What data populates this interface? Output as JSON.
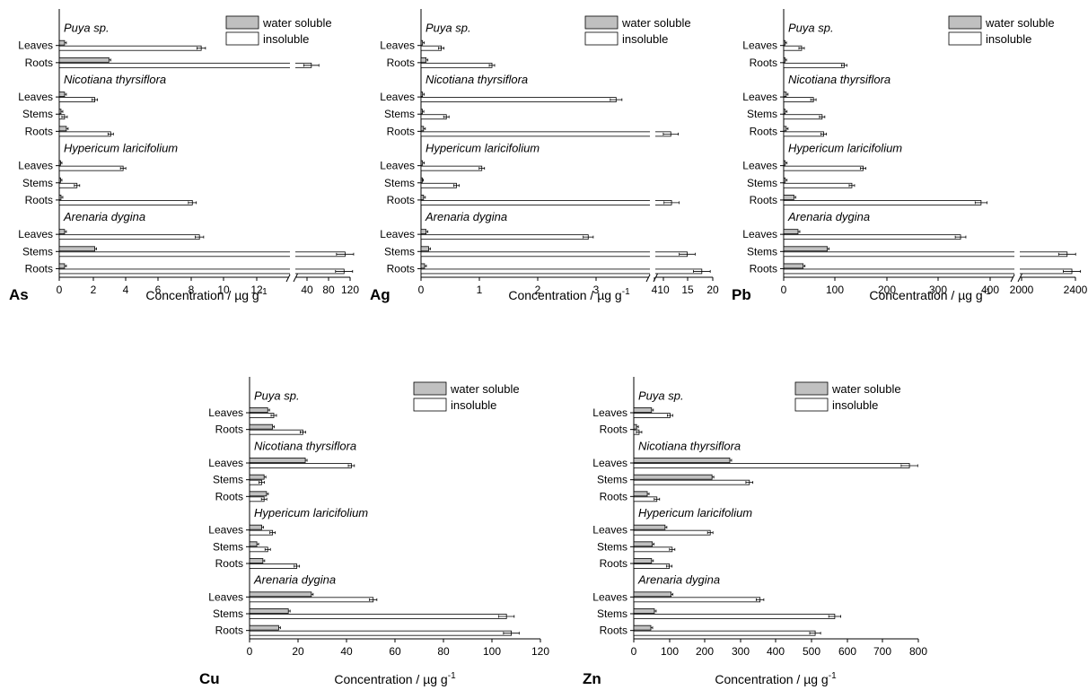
{
  "figure": {
    "legend_soluble": "water soluble",
    "legend_insoluble": "insoluble",
    "xlabel": "Concentration / µg g",
    "xlabel_sup": "-1"
  },
  "colors": {
    "soluble_fill": "#c0c0c0",
    "insoluble_fill": "#ffffff",
    "stroke": "#000000"
  },
  "chart_data": [
    {
      "type": "bar",
      "element": "As",
      "legend": [
        "water soluble",
        "insoluble"
      ],
      "legend_position": "top-right",
      "x_ticks": [
        "0",
        "2",
        "4",
        "6",
        "8",
        "10",
        "12",
        "40",
        "80",
        "120"
      ],
      "x_break": "between 12 and 40",
      "groups": [
        {
          "species": "Puya sp.",
          "organs": [
            {
              "organ": "Leaves",
              "water_soluble": 0.3,
              "insoluble": 8.0
            },
            {
              "organ": "Roots",
              "water_soluble": 2.8,
              "insoluble": 43
            }
          ]
        },
        {
          "species": "Nicotiana thyrsiflora",
          "organs": [
            {
              "organ": "Leaves",
              "water_soluble": 0.3,
              "insoluble": 2.0
            },
            {
              "organ": "Stems",
              "water_soluble": 0.1,
              "insoluble": 0.3
            },
            {
              "organ": "Roots",
              "water_soluble": 0.4,
              "insoluble": 2.9
            }
          ]
        },
        {
          "species": "Hypericum laricifolium",
          "organs": [
            {
              "organ": "Leaves",
              "water_soluble": 0.05,
              "insoluble": 3.6
            },
            {
              "organ": "Stems",
              "water_soluble": 0.05,
              "insoluble": 1.0
            },
            {
              "organ": "Roots",
              "water_soluble": 0.1,
              "insoluble": 7.5
            }
          ]
        },
        {
          "species": "Arenaria dygina",
          "organs": [
            {
              "organ": "Leaves",
              "water_soluble": 0.3,
              "insoluble": 7.9
            },
            {
              "organ": "Stems",
              "water_soluble": 2.0,
              "insoluble": 110
            },
            {
              "organ": "Roots",
              "water_soluble": 0.3,
              "insoluble": 108
            }
          ]
        }
      ]
    },
    {
      "type": "bar",
      "element": "Ag",
      "legend": [
        "water soluble",
        "insoluble"
      ],
      "legend_position": "top-right",
      "x_ticks": [
        "0",
        "1",
        "2",
        "3",
        "4",
        "10",
        "15",
        "20"
      ],
      "x_break": "between 4 and 10",
      "groups": [
        {
          "species": "Puya sp.",
          "organs": [
            {
              "organ": "Leaves",
              "water_soluble": 0.03,
              "insoluble": 0.4
            },
            {
              "organ": "Roots",
              "water_soluble": 0.1,
              "insoluble": 1.4
            }
          ]
        },
        {
          "species": "Nicotiana thyrsiflora",
          "organs": [
            {
              "organ": "Leaves",
              "water_soluble": 0.03,
              "insoluble": 3.85
            },
            {
              "organ": "Stems",
              "water_soluble": 0.02,
              "insoluble": 0.5
            },
            {
              "organ": "Roots",
              "water_soluble": 0.05,
              "insoluble": 8.5
            }
          ]
        },
        {
          "species": "Hypericum laricifolium",
          "organs": [
            {
              "organ": "Leaves",
              "water_soluble": 0.03,
              "insoluble": 1.2
            },
            {
              "organ": "Stems",
              "water_soluble": 0.01,
              "insoluble": 0.7
            },
            {
              "organ": "Roots",
              "water_soluble": 0.05,
              "insoluble": 8.7
            }
          ]
        },
        {
          "species": "Arenaria dygina",
          "organs": [
            {
              "organ": "Leaves",
              "water_soluble": 0.1,
              "insoluble": 3.3
            },
            {
              "organ": "Stems",
              "water_soluble": 0.15,
              "insoluble": 13
            },
            {
              "organ": "Roots",
              "water_soluble": 0.07,
              "insoluble": 17
            }
          ]
        }
      ]
    },
    {
      "type": "bar",
      "element": "Pb",
      "legend": [
        "water soluble",
        "insoluble"
      ],
      "legend_position": "top-right",
      "x_ticks": [
        "0",
        "100",
        "200",
        "300",
        "400",
        "2000",
        "2400"
      ],
      "x_break": "between 400 and 2000",
      "groups": [
        {
          "species": "Puya sp.",
          "organs": [
            {
              "organ": "Leaves",
              "water_soluble": 2,
              "insoluble": 35
            },
            {
              "organ": "Roots",
              "water_soluble": 2,
              "insoluble": 118
            }
          ]
        },
        {
          "species": "Nicotiana thyrsiflora",
          "organs": [
            {
              "organ": "Leaves",
              "water_soluble": 5,
              "insoluble": 58
            },
            {
              "organ": "Stems",
              "water_soluble": 3,
              "insoluble": 75
            },
            {
              "organ": "Roots",
              "water_soluble": 5,
              "insoluble": 78
            }
          ]
        },
        {
          "species": "Hypericum laricifolium",
          "organs": [
            {
              "organ": "Leaves",
              "water_soluble": 3,
              "insoluble": 155
            },
            {
              "organ": "Stems",
              "water_soluble": 3,
              "insoluble": 133
            },
            {
              "organ": "Roots",
              "water_soluble": 20,
              "insoluble": 385
            }
          ]
        },
        {
          "species": "Arenaria dygina",
          "organs": [
            {
              "organ": "Leaves",
              "water_soluble": 28,
              "insoluble": 345
            },
            {
              "organ": "Stems",
              "water_soluble": 85,
              "insoluble": 2450
            },
            {
              "organ": "Roots",
              "water_soluble": 38,
              "insoluble": 2650
            }
          ]
        }
      ]
    },
    {
      "type": "bar",
      "element": "Cu",
      "legend": [
        "water soluble",
        "insoluble"
      ],
      "legend_position": "top-right",
      "xlim": [
        0,
        120
      ],
      "x_ticks": [
        "0",
        "20",
        "40",
        "60",
        "80",
        "100",
        "120"
      ],
      "groups": [
        {
          "species": "Puya sp.",
          "organs": [
            {
              "organ": "Leaves",
              "water_soluble": 7.5,
              "insoluble": 10
            },
            {
              "organ": "Roots",
              "water_soluble": 9.5,
              "insoluble": 22
            }
          ]
        },
        {
          "species": "Nicotiana thyrsiflora",
          "organs": [
            {
              "organ": "Leaves",
              "water_soluble": 23,
              "insoluble": 42
            },
            {
              "organ": "Stems",
              "water_soluble": 6,
              "insoluble": 5
            },
            {
              "organ": "Roots",
              "water_soluble": 7,
              "insoluble": 6
            }
          ]
        },
        {
          "species": "Hypericum laricifolium",
          "organs": [
            {
              "organ": "Leaves",
              "water_soluble": 5,
              "insoluble": 9.5
            },
            {
              "organ": "Stems",
              "water_soluble": 3,
              "insoluble": 7.5
            },
            {
              "organ": "Roots",
              "water_soluble": 5.5,
              "insoluble": 19.5
            }
          ]
        },
        {
          "species": "Arenaria dygina",
          "organs": [
            {
              "organ": "Leaves",
              "water_soluble": 25.5,
              "insoluble": 51
            },
            {
              "organ": "Stems",
              "water_soluble": 16,
              "insoluble": 106
            },
            {
              "organ": "Roots",
              "water_soluble": 12,
              "insoluble": 108
            }
          ]
        }
      ]
    },
    {
      "type": "bar",
      "element": "Zn",
      "legend": [
        "water soluble",
        "insoluble"
      ],
      "legend_position": "top-right",
      "xlim": [
        0,
        800
      ],
      "x_ticks": [
        "0",
        "100",
        "200",
        "300",
        "400",
        "500",
        "600",
        "700",
        "800"
      ],
      "groups": [
        {
          "species": "Puya sp.",
          "organs": [
            {
              "organ": "Leaves",
              "water_soluble": 50,
              "insoluble": 102
            },
            {
              "organ": "Roots",
              "water_soluble": 8,
              "insoluble": 15
            }
          ]
        },
        {
          "species": "Nicotiana thyrsiflora",
          "organs": [
            {
              "organ": "Leaves",
              "water_soluble": 270,
              "insoluble": 775
            },
            {
              "organ": "Stems",
              "water_soluble": 220,
              "insoluble": 325
            },
            {
              "organ": "Roots",
              "water_soluble": 38,
              "insoluble": 65
            }
          ]
        },
        {
          "species": "Hypericum laricifolium",
          "organs": [
            {
              "organ": "Leaves",
              "water_soluble": 88,
              "insoluble": 215
            },
            {
              "organ": "Stems",
              "water_soluble": 52,
              "insoluble": 108
            },
            {
              "organ": "Roots",
              "water_soluble": 50,
              "insoluble": 100
            }
          ]
        },
        {
          "species": "Arenaria dygina",
          "organs": [
            {
              "organ": "Leaves",
              "water_soluble": 105,
              "insoluble": 355
            },
            {
              "organ": "Stems",
              "water_soluble": 58,
              "insoluble": 565
            },
            {
              "organ": "Roots",
              "water_soluble": 48,
              "insoluble": 510
            }
          ]
        }
      ]
    }
  ]
}
